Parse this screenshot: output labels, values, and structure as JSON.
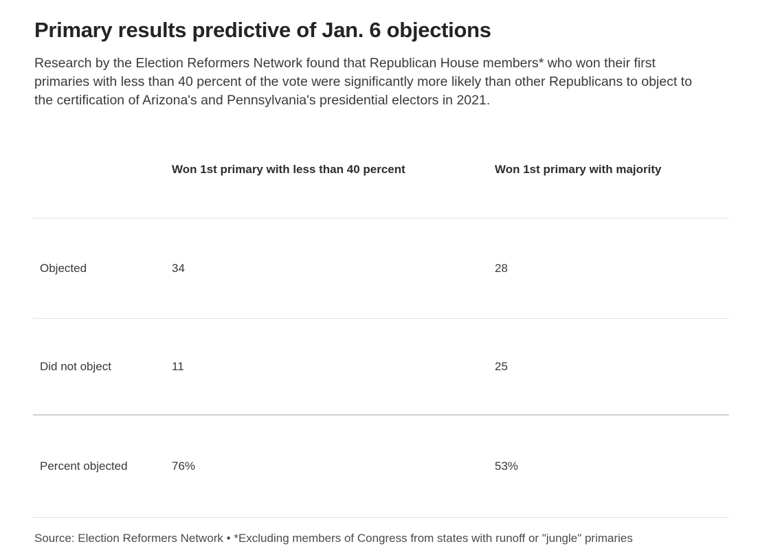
{
  "chart_data": {
    "type": "table",
    "title": "Primary results predictive of Jan. 6 objections",
    "subtitle": "Research by the Election Reformers Network found that Republican House members* who won their first primaries with less than 40 percent of the vote were significantly more likely than other Republicans to object to the certification of Arizona's and Pennsylvania's presidential electors in 2021.",
    "columns": [
      "",
      "Won 1st primary with less than 40 percent",
      "Won 1st primary with majority"
    ],
    "rows": [
      {
        "label": "Objected",
        "values": [
          "34",
          "28"
        ]
      },
      {
        "label": "Did not object",
        "values": [
          "11",
          "25"
        ]
      },
      {
        "label": "Percent objected",
        "values": [
          "76%",
          "53%"
        ]
      }
    ],
    "source_note": "Source: Election Reformers Network • *Excluding members of Congress from states with runoff or \"jungle\" primaries",
    "layout_hints": {
      "grid": "horizontal dividers only",
      "strong_divider_above_row": "Percent objected",
      "column_alignment": "left"
    }
  },
  "colors": {
    "background": "#ffffff",
    "title_text": "#242424",
    "body_text": "#3a3a3a",
    "cell_text": "#373737",
    "source_text": "#4b4b4b",
    "divider_light": "#e0e0e0",
    "divider_strong": "#d0d0d0"
  }
}
